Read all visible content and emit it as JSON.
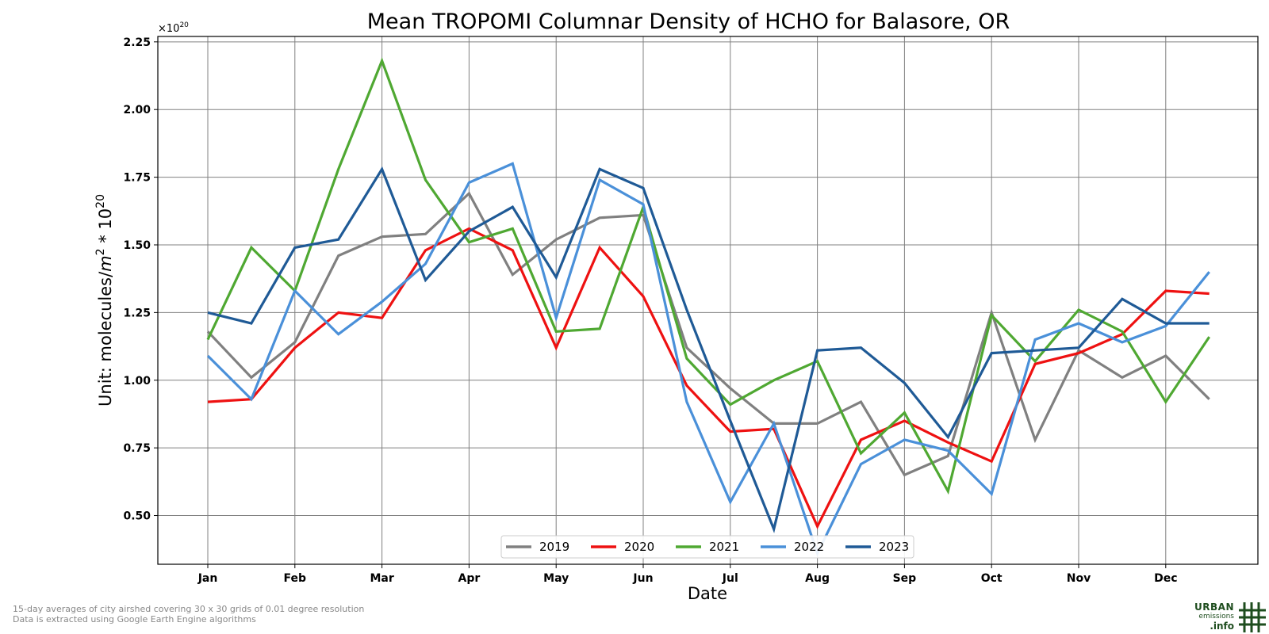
{
  "chart_data": {
    "type": "line",
    "title": "Mean TROPOMI Columnar Density of HCHO for Balasore, OR",
    "xlabel": "Date",
    "ylabel_prefix": "Unit: molecules/",
    "ylabel_unit_base": "m",
    "ylabel_unit_exp": "2",
    "ylabel_mid": " * 10",
    "ylabel_exp": "20",
    "multiplier_base": "×10",
    "multiplier_exp": "20",
    "ylim": [
      0.32,
      2.27
    ],
    "yticks": [
      "0.50",
      "0.75",
      "1.00",
      "1.25",
      "1.50",
      "1.75",
      "2.00",
      "2.25"
    ],
    "x_period_labels": [
      "Jan 1",
      "Jan 16",
      "Feb 1",
      "Feb 16",
      "Mar 1",
      "Mar 16",
      "Apr 1",
      "Apr 16",
      "May 1",
      "May 16",
      "Jun 1",
      "Jun 16",
      "Jul 1",
      "Jul 16",
      "Aug 1",
      "Aug 16",
      "Sep 1",
      "Sep 16",
      "Oct 1",
      "Oct 16",
      "Nov 1",
      "Nov 16",
      "Dec 1",
      "Dec 16"
    ],
    "x_tick_labels": [
      "Jan",
      "Feb",
      "Mar",
      "Apr",
      "May",
      "Jun",
      "Jul",
      "Aug",
      "Sep",
      "Oct",
      "Nov",
      "Dec"
    ],
    "grid": true,
    "legend_position": "bottom-center",
    "series": [
      {
        "name": "2019",
        "color": "#808080",
        "values": [
          1.18,
          1.01,
          1.14,
          1.46,
          1.53,
          1.54,
          1.69,
          1.39,
          1.52,
          1.6,
          1.61,
          1.12,
          0.97,
          0.84,
          0.84,
          0.92,
          0.65,
          0.72,
          1.25,
          0.78,
          1.11,
          1.01,
          1.09,
          0.93
        ]
      },
      {
        "name": "2020",
        "color": "#ee1111",
        "values": [
          0.92,
          0.93,
          1.12,
          1.25,
          1.23,
          1.48,
          1.56,
          1.48,
          1.12,
          1.49,
          1.31,
          0.98,
          0.81,
          0.82,
          0.46,
          0.78,
          0.85,
          0.77,
          0.7,
          1.06,
          1.1,
          1.17,
          1.33,
          1.32
        ]
      },
      {
        "name": "2021",
        "color": "#4fa832",
        "values": [
          1.15,
          1.49,
          1.33,
          1.78,
          2.18,
          1.74,
          1.51,
          1.56,
          1.18,
          1.19,
          1.64,
          1.08,
          0.91,
          1.0,
          1.07,
          0.73,
          0.88,
          0.59,
          1.24,
          1.07,
          1.26,
          1.18,
          0.92,
          1.16
        ]
      },
      {
        "name": "2022",
        "color": "#4a90d9",
        "values": [
          1.09,
          0.93,
          1.33,
          1.17,
          1.29,
          1.43,
          1.73,
          1.8,
          1.23,
          1.74,
          1.65,
          0.92,
          0.55,
          0.84,
          0.36,
          0.69,
          0.78,
          0.74,
          0.58,
          1.15,
          1.21,
          1.14,
          1.2,
          1.4
        ]
      },
      {
        "name": "2023",
        "color": "#1f5a96",
        "values": [
          1.25,
          1.21,
          1.49,
          1.52,
          1.78,
          1.37,
          1.55,
          1.64,
          1.38,
          1.78,
          1.71,
          1.26,
          0.85,
          0.45,
          1.11,
          1.12,
          0.99,
          0.79,
          1.1,
          1.11,
          1.12,
          1.3,
          1.21,
          1.21
        ]
      }
    ]
  },
  "footnotes": {
    "line1": "15-day averages of city airshed covering 30 x 30 grids of 0.01 degree resolution",
    "line2": "Data is extracted using Google Earth Engine algorithms"
  },
  "logo": {
    "line1": "URBAN",
    "line2": "emissions",
    "line3": ".info",
    "color": "#1e4d1e"
  }
}
